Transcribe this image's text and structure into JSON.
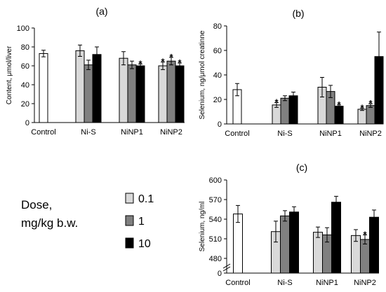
{
  "chart_data": [
    {
      "panel": "(a)",
      "type": "bar",
      "title": "(a)",
      "xlabel": "",
      "ylabel": "Content, μmol/liver",
      "ylim": [
        0,
        100
      ],
      "yticks": [
        0,
        20,
        40,
        60,
        80,
        100
      ],
      "categories": [
        "Control",
        "Ni-S",
        "NiNP1",
        "NiNP2"
      ],
      "control": {
        "value": 73,
        "error": 3.5
      },
      "series": [
        {
          "name": "0.1",
          "values": [
            null,
            76,
            68,
            60
          ],
          "errors": [
            null,
            6,
            7,
            4
          ],
          "significant": [
            false,
            false,
            false,
            true
          ]
        },
        {
          "name": "1",
          "values": [
            null,
            61,
            61,
            65
          ],
          "errors": [
            null,
            5,
            4,
            4
          ],
          "significant": [
            false,
            false,
            false,
            true
          ]
        },
        {
          "name": "10",
          "values": [
            null,
            72,
            60,
            60
          ],
          "errors": [
            null,
            8,
            2,
            3
          ],
          "significant": [
            false,
            false,
            true,
            true
          ]
        }
      ],
      "grid": false
    },
    {
      "panel": "(b)",
      "type": "bar",
      "title": "(b)",
      "xlabel": "",
      "ylabel": "Selenium, ng/μmol creatinne",
      "ylim": [
        0,
        80
      ],
      "yticks": [
        0,
        20,
        40,
        60,
        80
      ],
      "categories": [
        "Control",
        "Ni-S",
        "NiNP1",
        "NiNP2"
      ],
      "control": {
        "value": 28,
        "error": 5
      },
      "series": [
        {
          "name": "0.1",
          "values": [
            null,
            15.5,
            30,
            12
          ],
          "errors": [
            null,
            2,
            8,
            1
          ],
          "significant": [
            false,
            true,
            false,
            true
          ]
        },
        {
          "name": "1",
          "values": [
            null,
            21,
            26.5,
            15
          ],
          "errors": [
            null,
            2,
            5,
            1.5
          ],
          "significant": [
            false,
            false,
            false,
            true
          ]
        },
        {
          "name": "10",
          "values": [
            null,
            23,
            14.5,
            55
          ],
          "errors": [
            null,
            3,
            1,
            20
          ],
          "significant": [
            false,
            false,
            true,
            false
          ]
        }
      ],
      "grid": false
    },
    {
      "panel": "(c)",
      "type": "bar",
      "title": "(c)",
      "xlabel": "",
      "ylabel": "Selenium, ng/ml",
      "ylim": [
        480,
        600
      ],
      "axis_break": true,
      "yticks": [
        0,
        480,
        510,
        540,
        570,
        600
      ],
      "categories": [
        "Control",
        "Ni-S",
        "NiNP1",
        "NiNP2"
      ],
      "control": {
        "value": 548,
        "error": 13
      },
      "series": [
        {
          "name": "0.1",
          "values": [
            null,
            521,
            520,
            515
          ],
          "errors": [
            null,
            16,
            8,
            9
          ],
          "significant": [
            false,
            false,
            false,
            false
          ]
        },
        {
          "name": "1",
          "values": [
            null,
            545,
            516,
            509
          ],
          "errors": [
            null,
            8,
            11,
            7
          ],
          "significant": [
            false,
            false,
            false,
            true
          ]
        },
        {
          "name": "10",
          "values": [
            null,
            551,
            566,
            543
          ],
          "errors": [
            null,
            8,
            9,
            11
          ],
          "significant": [
            false,
            false,
            false,
            false
          ]
        }
      ],
      "grid": false
    }
  ],
  "legend": {
    "title_line1": "Dose,",
    "title_line2": "mg/kg b.w.",
    "items": [
      {
        "label": "0.1",
        "color": "#d9d9d9"
      },
      {
        "label": "1",
        "color": "#808080"
      },
      {
        "label": "10",
        "color": "#000000"
      }
    ]
  },
  "colors": {
    "control": "#ffffff",
    "dose_0_1": "#d9d9d9",
    "dose_1": "#808080",
    "dose_10": "#000000"
  },
  "star_symbol": "*"
}
